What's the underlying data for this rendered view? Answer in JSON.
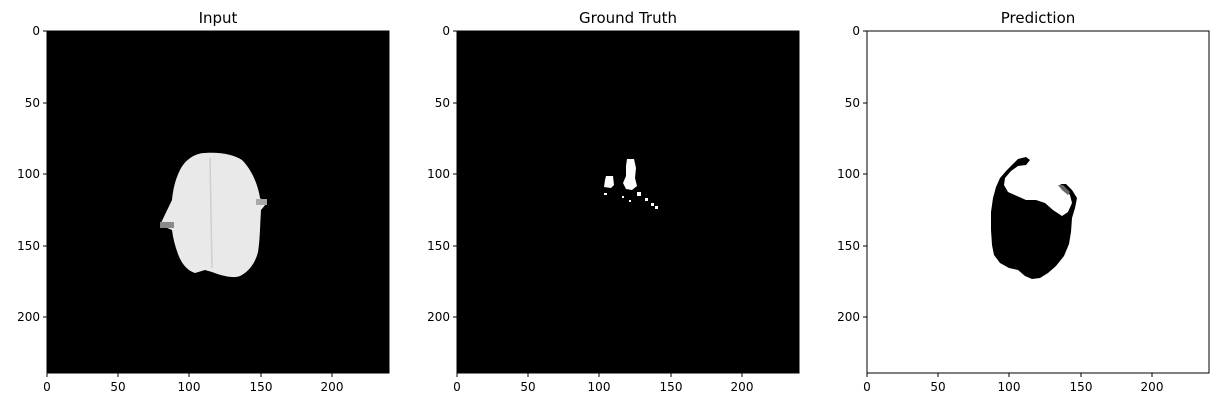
{
  "figure": {
    "panels": [
      {
        "title": "Input",
        "background": "#000000",
        "xticks": [
          "0",
          "50",
          "100",
          "150",
          "200"
        ],
        "yticks": [
          "0",
          "50",
          "100",
          "150",
          "200"
        ]
      },
      {
        "title": "Ground Truth",
        "background": "#000000",
        "xticks": [
          "0",
          "50",
          "100",
          "150",
          "200"
        ],
        "yticks": [
          "0",
          "50",
          "100",
          "150",
          "200"
        ]
      },
      {
        "title": "Prediction",
        "background": "#ffffff",
        "xticks": [
          "0",
          "50",
          "100",
          "150",
          "200"
        ],
        "yticks": [
          "0",
          "50",
          "100",
          "150",
          "200"
        ]
      }
    ]
  }
}
